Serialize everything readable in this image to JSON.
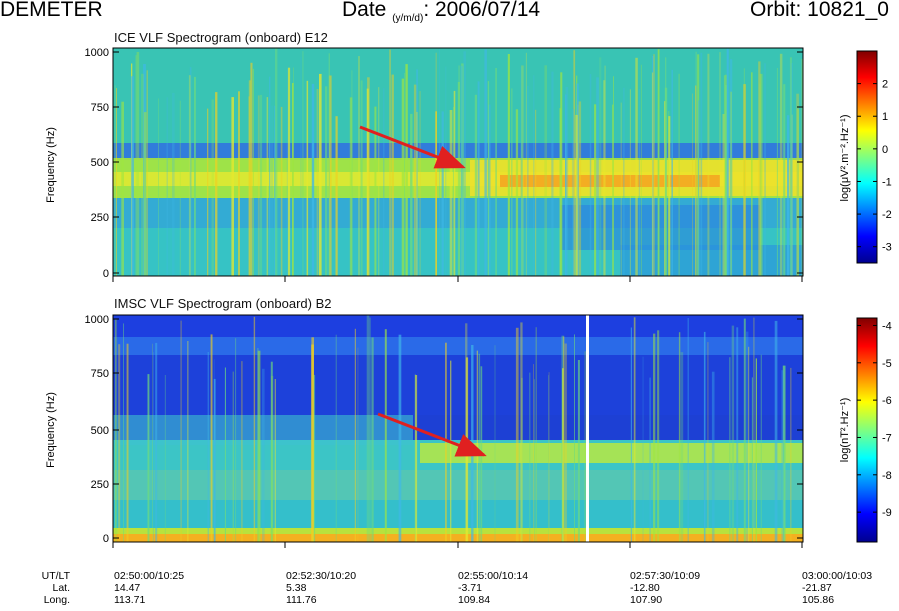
{
  "header": {
    "mission": "DEMETER",
    "date_label": "Date",
    "date_sub": "(y/m/d)",
    "date_value": ": 2006/07/14",
    "orbit": "Orbit: 10821_0"
  },
  "chart_data": [
    {
      "type": "heatmap",
      "title": "ICE VLF Spectrogram (onboard) E12",
      "ylabel": "Frequency (Hz)",
      "ylim": [
        0,
        1000
      ],
      "y_ticks": [
        "0",
        "250",
        "500",
        "750",
        "1000"
      ],
      "colorbar": {
        "label_pre": "log(",
        "label_main": "μV².m⁻².Hz⁻¹",
        "label_post": ")",
        "range": [
          -3.5,
          3
        ],
        "ticks": [
          "-3",
          "-2",
          "-1",
          "0",
          "1",
          "2"
        ]
      },
      "annotation": "red arrow pointing at emission near 450 Hz, 02:55 UT"
    },
    {
      "type": "heatmap",
      "title": "IMSC VLF Spectrogram (onboard) B2",
      "ylabel": "Frequency (Hz)",
      "ylim": [
        0,
        1000
      ],
      "y_ticks": [
        "0",
        "250",
        "500",
        "750",
        "1000"
      ],
      "colorbar": {
        "label_pre": "log(",
        "label_main": "nT².Hz⁻¹",
        "label_post": ")",
        "range": [
          -9.8,
          -3.8
        ],
        "ticks": [
          "-9",
          "-8",
          "-7",
          "-6",
          "-5",
          "-4"
        ]
      },
      "annotation": "red arrow pointing at emission near 380 Hz, 02:55 UT"
    }
  ],
  "footer": {
    "labels": [
      "UT/LT",
      "Lat.",
      "Long."
    ],
    "columns": [
      {
        "time": "02:50:00/10:25",
        "lat": "14.47",
        "long": "113.71"
      },
      {
        "time": "02:52:30/10:20",
        "lat": "5.38",
        "long": "111.76"
      },
      {
        "time": "02:55:00/10:14",
        "lat": "-3.71",
        "long": "109.84"
      },
      {
        "time": "02:57:30/10:09",
        "lat": "-12.80",
        "long": "107.90"
      },
      {
        "time": "03:00:00/10:03",
        "lat": "-21.87",
        "long": "105.86"
      }
    ]
  },
  "colors": {
    "arrow": "#e02020",
    "gap_line": "#ffffff"
  }
}
